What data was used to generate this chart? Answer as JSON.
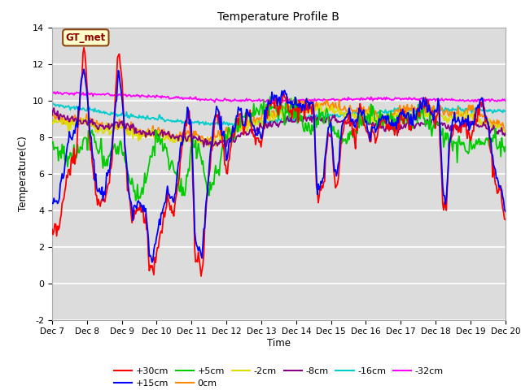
{
  "title": "Temperature Profile B",
  "xlabel": "Time",
  "ylabel": "Temperature(C)",
  "ylim": [
    -2,
    14
  ],
  "xlim": [
    0,
    13
  ],
  "xtick_labels": [
    "Dec 7",
    "Dec 8",
    "Dec 9",
    "Dec 10",
    "Dec 11",
    "Dec 12",
    "Dec 13",
    "Dec 14",
    "Dec 15",
    "Dec 16",
    "Dec 17",
    "Dec 18",
    "Dec 19",
    "Dec 20"
  ],
  "ytick_values": [
    -2,
    0,
    2,
    4,
    6,
    8,
    10,
    12,
    14
  ],
  "bg_color": "#dcdcdc",
  "series_colors": {
    "+30cm": "#ff0000",
    "+15cm": "#0000ff",
    "+5cm": "#00cc00",
    "0cm": "#ff8800",
    "-2cm": "#dddd00",
    "-8cm": "#880088",
    "-16cm": "#00cccc",
    "-32cm": "#ff00ff"
  },
  "annotation_text": "GT_met",
  "annotation_bg": "#ffffcc",
  "annotation_border": "#8B4513",
  "legend_ncol_row1": 6,
  "legend_ncol_row2": 2
}
